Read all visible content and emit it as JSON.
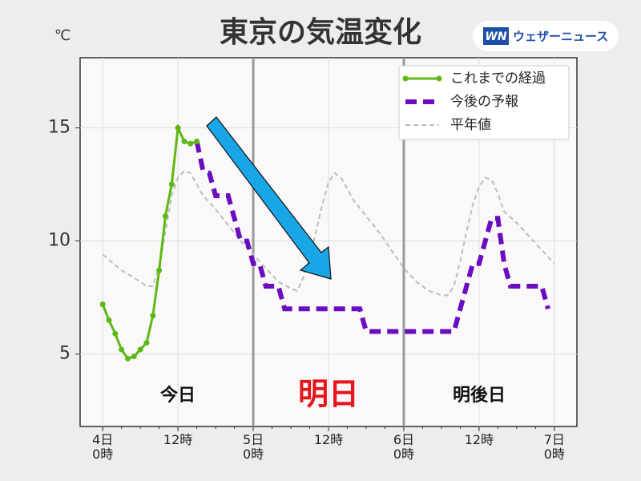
{
  "chart_data": {
    "type": "line",
    "title": "東京の気温変化",
    "y_label": "℃",
    "logo_mark": "WN",
    "logo_text": "ウェザーニュース",
    "annotations": [
      "今日",
      "明日",
      "明後日"
    ],
    "xlim": [
      -3.6,
      75.6
    ],
    "ylim": [
      1.8,
      18.1
    ],
    "yticks": [
      5,
      10,
      15
    ],
    "xticks": [
      {
        "value": 0,
        "label": "4日\n0時"
      },
      {
        "value": 12,
        "label": "12時"
      },
      {
        "value": 24,
        "label": "5日\n0時"
      },
      {
        "value": 36,
        "label": "12時"
      },
      {
        "value": 48,
        "label": "6日\n0時"
      },
      {
        "value": 60,
        "label": "12時"
      },
      {
        "value": 72,
        "label": "7日\n0時"
      }
    ],
    "grid": true,
    "legend": "upper right",
    "series": [
      {
        "name": "これまでの経過",
        "color": "#5cb814",
        "linestyle": "solid",
        "markers": true,
        "x": [
          0,
          1,
          2,
          3,
          4,
          5,
          6,
          7,
          8,
          9,
          10,
          11,
          12,
          13,
          14,
          15
        ],
        "values": [
          7.2,
          6.5,
          5.9,
          5.2,
          4.8,
          4.9,
          5.2,
          5.5,
          6.7,
          8.7,
          11.1,
          12.5,
          15.0,
          14.4,
          14.3,
          14.4
        ]
      },
      {
        "name": "今後の予報",
        "color": "#6a0dc0",
        "linestyle": "dashed",
        "markers": false,
        "x": [
          15,
          16,
          17,
          18,
          19,
          20,
          21,
          22,
          23,
          24,
          25,
          26,
          27,
          28,
          29,
          30,
          31,
          32,
          33,
          34,
          35,
          36,
          37,
          38,
          39,
          40,
          41,
          42,
          43,
          44,
          45,
          46,
          47,
          48,
          49,
          50,
          51,
          52,
          53,
          54,
          55,
          56,
          57,
          58,
          59,
          60,
          61,
          62,
          63,
          64,
          65,
          66,
          67,
          68,
          69,
          70,
          71
        ],
        "values": [
          14.4,
          13.1,
          13,
          12,
          12,
          12,
          11,
          10,
          10,
          9,
          9,
          8,
          8,
          8,
          7,
          7,
          7,
          7,
          7,
          7,
          7,
          7,
          7,
          7,
          7,
          7,
          7,
          6,
          6,
          6,
          6,
          6,
          6,
          6,
          6,
          6,
          6,
          6,
          6,
          6,
          6,
          6,
          7,
          8,
          9,
          9,
          10,
          11,
          11,
          9,
          8,
          8,
          8,
          8,
          8,
          8,
          7
        ]
      },
      {
        "name": "平年値",
        "color": "#bdbdbd",
        "linestyle": "dotted",
        "markers": false,
        "x": [
          0,
          3,
          6,
          7,
          8,
          9,
          10,
          11,
          12,
          13,
          14,
          15,
          16,
          18,
          20,
          22,
          24,
          26,
          28,
          30,
          31,
          32,
          33,
          34,
          35,
          36,
          37,
          38,
          39,
          40,
          42,
          44,
          46,
          48,
          50,
          52,
          54,
          55,
          56,
          57,
          58,
          59,
          60,
          61,
          62,
          63,
          64,
          66,
          68,
          70,
          72
        ],
        "values": [
          9.4,
          8.7,
          8.2,
          8.0,
          8.0,
          8.9,
          10.4,
          12.0,
          12.8,
          13.1,
          13.0,
          12.5,
          12.0,
          11.4,
          10.7,
          10.0,
          9.4,
          8.8,
          8.2,
          7.9,
          7.8,
          8.4,
          9.3,
          10.4,
          11.6,
          12.6,
          13.0,
          12.8,
          12.3,
          11.8,
          11.1,
          10.4,
          9.6,
          8.8,
          8.2,
          7.8,
          7.6,
          7.6,
          8.0,
          9.1,
          10.4,
          11.6,
          12.4,
          12.8,
          12.7,
          12.1,
          11.3,
          10.8,
          10.2,
          9.6,
          9.0
        ]
      }
    ]
  }
}
